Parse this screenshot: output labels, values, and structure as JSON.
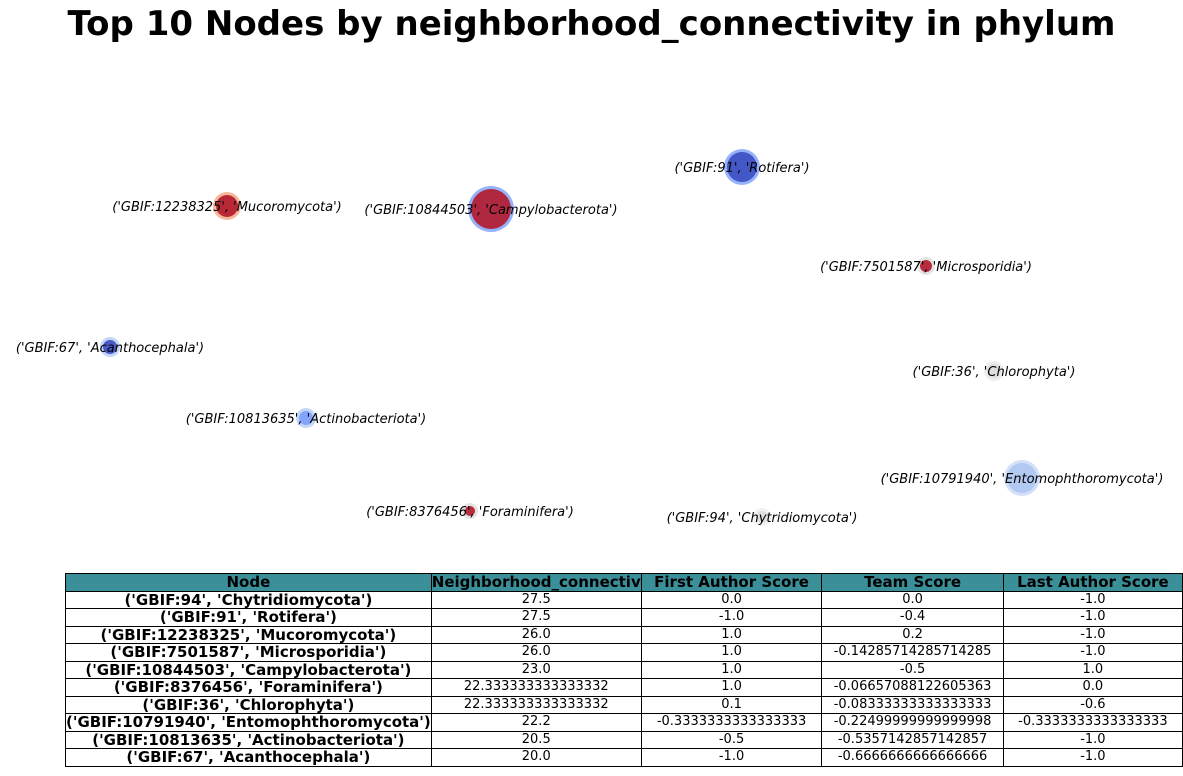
{
  "title": "Top 10 Nodes by neighborhood_connectivity in phylum",
  "chart_data": {
    "type": "network",
    "nodes": [
      {
        "label": "('GBIF:12238325', 'Mucoromycota')",
        "color": "#b2182b"
      },
      {
        "label": "('GBIF:10844503', 'Campylobacterota')",
        "color": "#b2182b"
      },
      {
        "label": "('GBIF:91', 'Rotifera')",
        "color": "#3b4cc0"
      },
      {
        "label": "('GBIF:7501587', 'Microsporidia')",
        "color": "#b2182b"
      },
      {
        "label": "('GBIF:67', 'Acanthocephala')",
        "color": "#3b4cc0"
      },
      {
        "label": "('GBIF:36', 'Chlorophyta')",
        "color": "#dddddd"
      },
      {
        "label": "('GBIF:10813635', 'Actinobacteriota')",
        "color": "#7b9ff9"
      },
      {
        "label": "('GBIF:10791940', 'Entomophthoromycota')",
        "color": "#aec7f0"
      },
      {
        "label": "('GBIF:8376456', 'Foraminifera')",
        "color": "#b2182b"
      },
      {
        "label": "('GBIF:94', 'Chytridiomycota')",
        "color": "#dddddd"
      }
    ]
  },
  "table": {
    "headers": [
      "Node",
      "Neighborhood_connectiv",
      "First Author Score",
      "Team Score",
      "Last Author Score"
    ],
    "rows": [
      [
        "('GBIF:94', 'Chytridiomycota')",
        "27.5",
        "0.0",
        "0.0",
        "-1.0"
      ],
      [
        "('GBIF:91', 'Rotifera')",
        "27.5",
        "-1.0",
        "-0.4",
        "-1.0"
      ],
      [
        "('GBIF:12238325', 'Mucoromycota')",
        "26.0",
        "1.0",
        "0.2",
        "-1.0"
      ],
      [
        "('GBIF:7501587', 'Microsporidia')",
        "26.0",
        "1.0",
        "-0.14285714285714285",
        "-1.0"
      ],
      [
        "('GBIF:10844503', 'Campylobacterota')",
        "23.0",
        "1.0",
        "-0.5",
        "1.0"
      ],
      [
        "('GBIF:8376456', 'Foraminifera')",
        "22.333333333333332",
        "1.0",
        "-0.06657088122605363",
        "0.0"
      ],
      [
        "('GBIF:36', 'Chlorophyta')",
        "22.333333333333332",
        "0.1",
        "-0.08333333333333333",
        "-0.6"
      ],
      [
        "('GBIF:10791940', 'Entomophthoromycota')",
        "22.2",
        "-0.3333333333333333",
        "-0.22499999999999998",
        "-0.3333333333333333"
      ],
      [
        "('GBIF:10813635', 'Actinobacteriota')",
        "20.5",
        "-0.5",
        "-0.5357142857142857",
        "-1.0"
      ],
      [
        "('GBIF:67', 'Acanthocephala')",
        "20.0",
        "-1.0",
        "-0.6666666666666666",
        "-1.0"
      ]
    ]
  }
}
